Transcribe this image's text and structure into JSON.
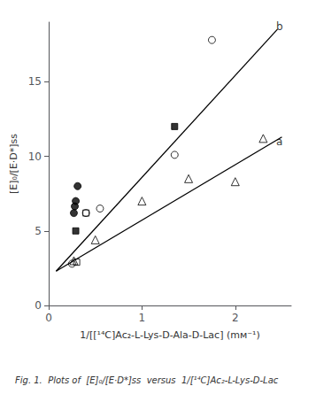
{
  "chart_data": {
    "type": "scatter",
    "xlabel": "1/[[¹⁴C]Ac₂-L-Lys-D-Ala-D-Lac] (mм⁻¹)",
    "ylabel": "[E]₀/[E·D*]ss",
    "caption": "Fig. 1.  Plots of  [E]₀/[E·D*]ss  versus  1/[¹⁴C]Ac₂-L-Lys-D-Lac",
    "xlim": [
      0,
      2.6
    ],
    "ylim": [
      0,
      19
    ],
    "xticks": [
      0,
      1,
      2
    ],
    "yticks": [
      0,
      5,
      10,
      15
    ],
    "grid": false,
    "series": [
      {
        "type": "line",
        "color": "#000000",
        "line_style": "solid",
        "x": [
          0.08,
          2.5
        ],
        "values": [
          2.3,
          11.3
        ]
      },
      {
        "type": "line",
        "color": "#000000",
        "line_style": "solid",
        "x": [
          0.08,
          2.45
        ],
        "values": [
          2.3,
          18.5
        ]
      },
      {
        "type": "scatter",
        "color": "#000000",
        "marker": "circle",
        "x": [
          0.27,
          0.28,
          0.29,
          0.31
        ],
        "values": [
          6.2,
          6.65,
          7.0,
          8.0
        ]
      },
      {
        "type": "scatter",
        "color": "#000000",
        "marker": "square",
        "x": [
          0.29,
          1.35
        ],
        "values": [
          5.0,
          12.0
        ]
      },
      {
        "type": "scatter",
        "color": "#000000",
        "marker": "open-circle",
        "x": [
          0.25,
          0.4,
          0.55,
          1.35,
          1.75
        ],
        "values": [
          2.8,
          6.2,
          6.5,
          10.1,
          17.8
        ]
      },
      {
        "type": "scatter",
        "color": "#000000",
        "marker": "open-square",
        "x": [
          0.3,
          0.4
        ],
        "values": [
          2.9,
          6.2
        ]
      },
      {
        "type": "scatter",
        "color": "#000000",
        "marker": "open-triangle",
        "x": [
          0.27,
          0.5,
          1.0,
          1.5,
          2.0,
          2.3
        ],
        "values": [
          3.0,
          4.4,
          7.0,
          8.5,
          8.3,
          11.2
        ]
      }
    ],
    "annotations": [
      {
        "text": "a",
        "x": 2.42,
        "y": 11.0
      },
      {
        "text": "b",
        "x": 2.42,
        "y": 18.7
      }
    ]
  }
}
